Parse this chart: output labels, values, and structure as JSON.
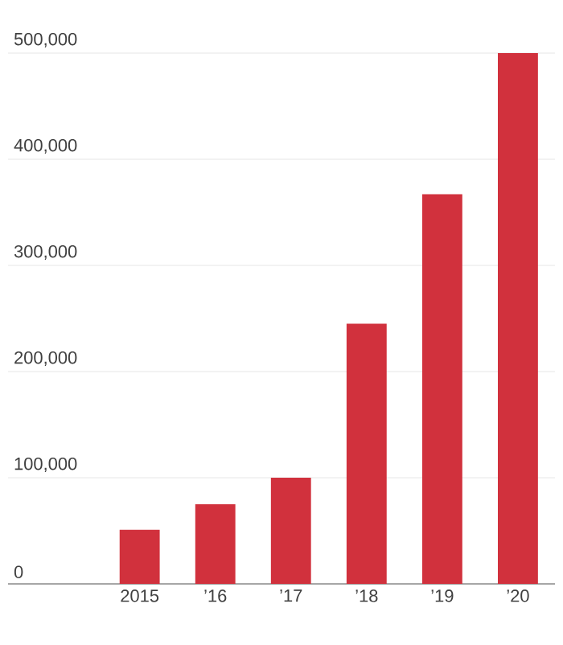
{
  "chart_data": {
    "type": "bar",
    "categories": [
      "2015",
      "’16",
      "’17",
      "’18",
      "’19",
      "’20"
    ],
    "values": [
      51000,
      75000,
      100000,
      245000,
      367000,
      500000
    ],
    "color": "#d1313d",
    "ylim": [
      0,
      500000
    ],
    "yticks": [
      {
        "value": 0,
        "label": "0"
      },
      {
        "value": 100000,
        "label": "100,000"
      },
      {
        "value": 200000,
        "label": "200,000"
      },
      {
        "value": 300000,
        "label": "300,000"
      },
      {
        "value": 400000,
        "label": "400,000"
      },
      {
        "value": 500000,
        "label": "500,000"
      }
    ],
    "grid": "y"
  }
}
